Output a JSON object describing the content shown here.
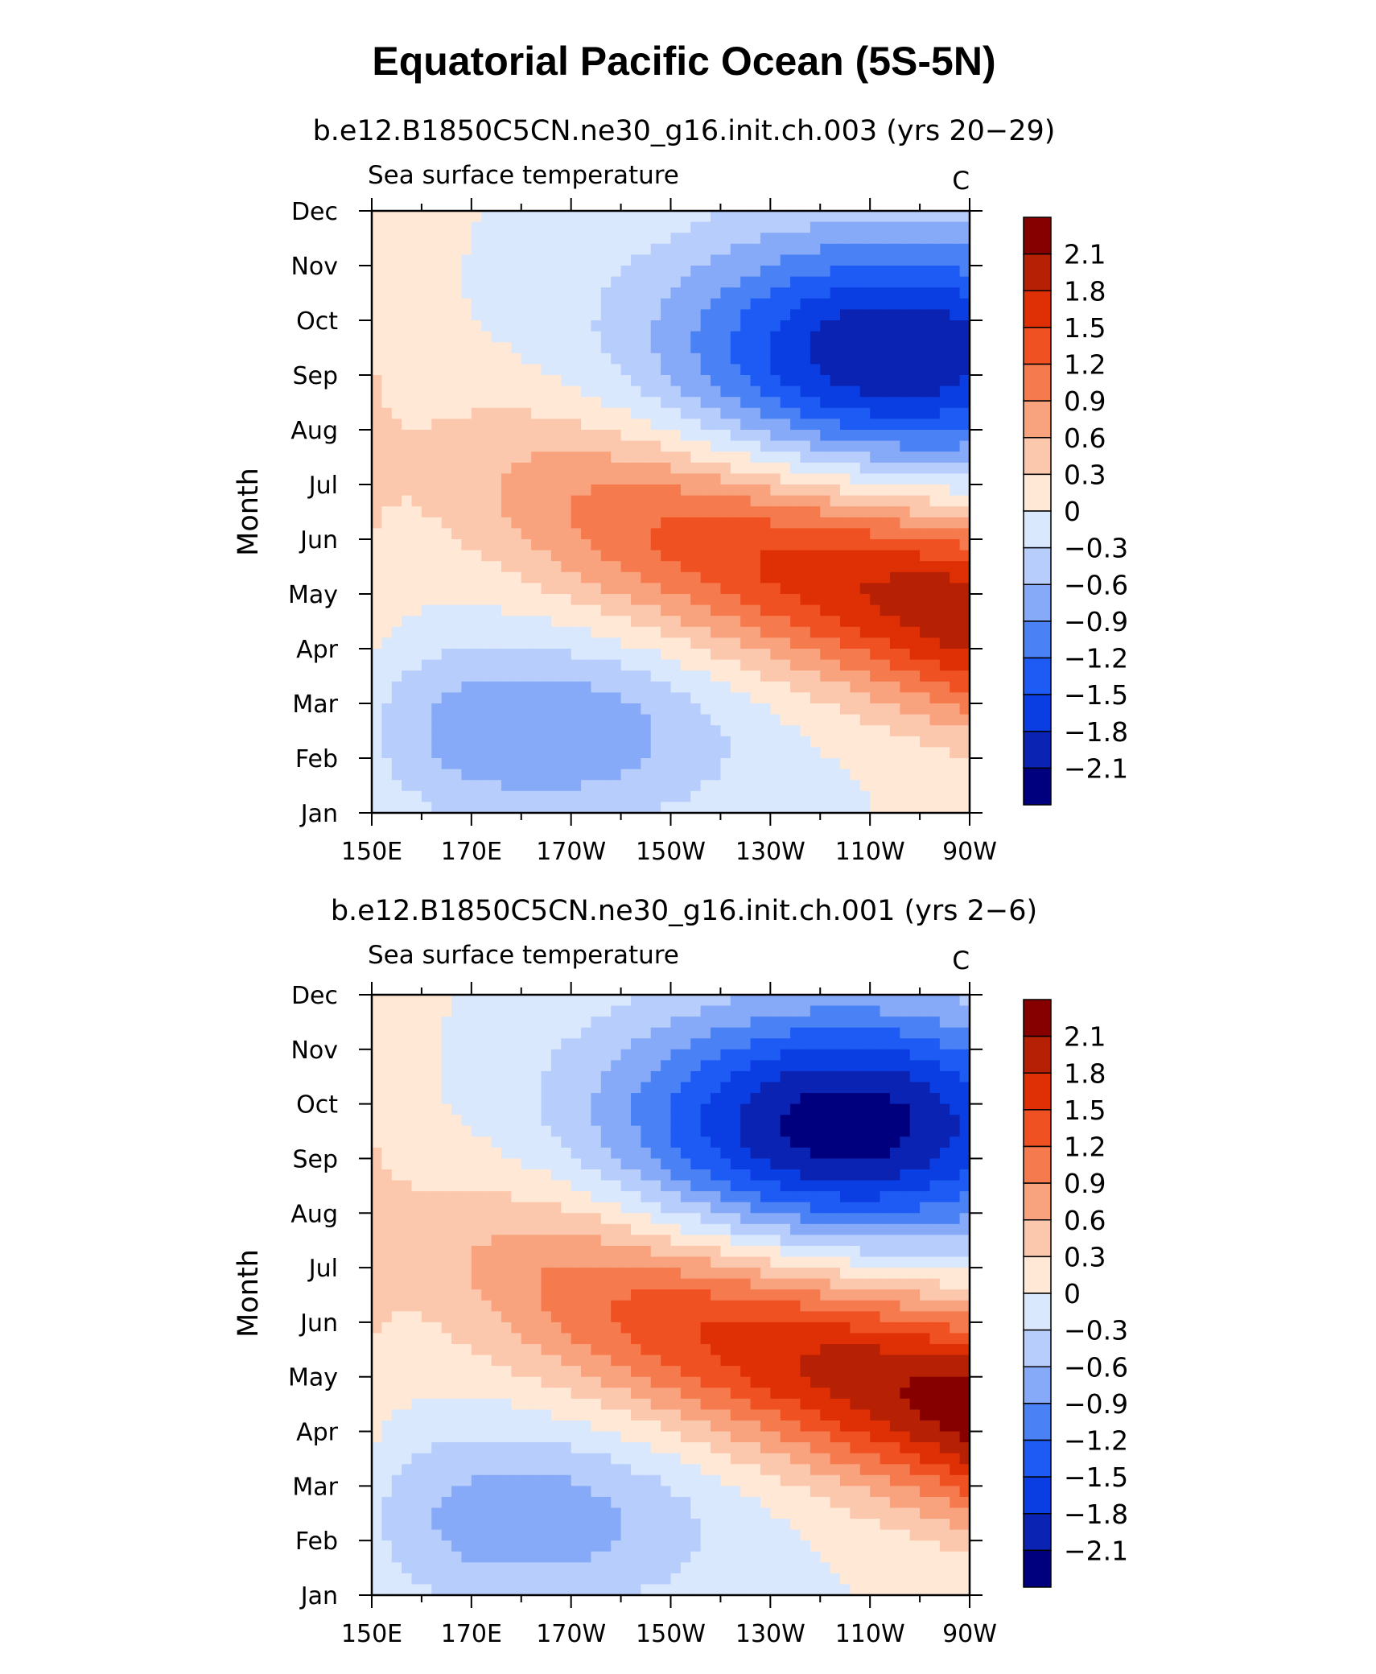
{
  "title": "Equatorial Pacific Ocean (5S-5N)",
  "colors": [
    "#00007f",
    "#0a23b3",
    "#0b3ee2",
    "#1e5bf5",
    "#4a82f5",
    "#86aaf7",
    "#b7cdfb",
    "#d9e8fd",
    "#ffe8d6",
    "#fcc8ad",
    "#f9a27e",
    "#f57a4d",
    "#f05122",
    "#df3005",
    "#b62004",
    "#860000"
  ],
  "chart_data": [
    {
      "type": "heatmap",
      "panel_title": "b.e12.B1850C5CN.ne30_g16.init.ch.003 (yrs 20−29)",
      "left_label": "Sea surface temperature",
      "units": "C",
      "ylabel": "Month",
      "x_tick_labels": [
        "150E",
        "170E",
        "170W",
        "150W",
        "130W",
        "110W",
        "90W"
      ],
      "y_tick_labels": [
        "Jan",
        "Feb",
        "Mar",
        "Apr",
        "May",
        "Jun",
        "Jul",
        "Aug",
        "Sep",
        "Oct",
        "Nov",
        "Dec"
      ],
      "xlim": [
        150,
        270
      ],
      "ylim": [
        1,
        12
      ],
      "colorbar_labels": [
        "2.1",
        "1.8",
        "1.5",
        "1.2",
        "0.9",
        "0.6",
        "0.3",
        "0",
        "−0.3",
        "−0.6",
        "−0.9",
        "−1.2",
        "−1.5",
        "−1.8",
        "−2.1"
      ],
      "levels": [
        -2.1,
        -1.8,
        -1.5,
        -1.2,
        -0.9,
        -0.6,
        -0.3,
        0,
        0.3,
        0.6,
        0.9,
        1.2,
        1.5,
        1.8,
        2.1
      ],
      "field": {
        "warm_amp": 2.1,
        "warm_peak_month": 4.6,
        "warm_start_lon": 170,
        "slope_month_per_deg": 0.025,
        "cold_amp": -2.1,
        "cold_center_lon": 255,
        "cold_center_month": 9.4,
        "w_spring_amp": -0.9,
        "w_spring_center_lon": 183,
        "w_spring_center_month": 2.5
      }
    },
    {
      "type": "heatmap",
      "panel_title": "b.e12.B1850C5CN.ne30_g16.init.ch.001 (yrs 2−6)",
      "left_label": "Sea surface temperature",
      "units": "C",
      "ylabel": "Month",
      "x_tick_labels": [
        "150E",
        "170E",
        "170W",
        "150W",
        "130W",
        "110W",
        "90W"
      ],
      "y_tick_labels": [
        "Jan",
        "Feb",
        "Mar",
        "Apr",
        "May",
        "Jun",
        "Jul",
        "Aug",
        "Sep",
        "Oct",
        "Nov",
        "Dec"
      ],
      "xlim": [
        150,
        270
      ],
      "ylim": [
        1,
        12
      ],
      "colorbar_labels": [
        "2.1",
        "1.8",
        "1.5",
        "1.2",
        "0.9",
        "0.6",
        "0.3",
        "0",
        "−0.3",
        "−0.6",
        "−0.9",
        "−1.2",
        "−1.5",
        "−1.8",
        "−2.1"
      ],
      "levels": [
        -2.1,
        -1.8,
        -1.5,
        -1.2,
        -0.9,
        -0.6,
        -0.3,
        0,
        0.3,
        0.6,
        0.9,
        1.2,
        1.5,
        1.8,
        2.1
      ],
      "field": {
        "warm_amp": 2.3,
        "warm_peak_month": 4.4,
        "warm_start_lon": 165,
        "slope_month_per_deg": 0.027,
        "cold_amp": -2.3,
        "cold_center_lon": 245,
        "cold_center_month": 9.6,
        "w_spring_amp": -0.8,
        "w_spring_center_lon": 180,
        "w_spring_center_month": 2.4
      }
    }
  ]
}
